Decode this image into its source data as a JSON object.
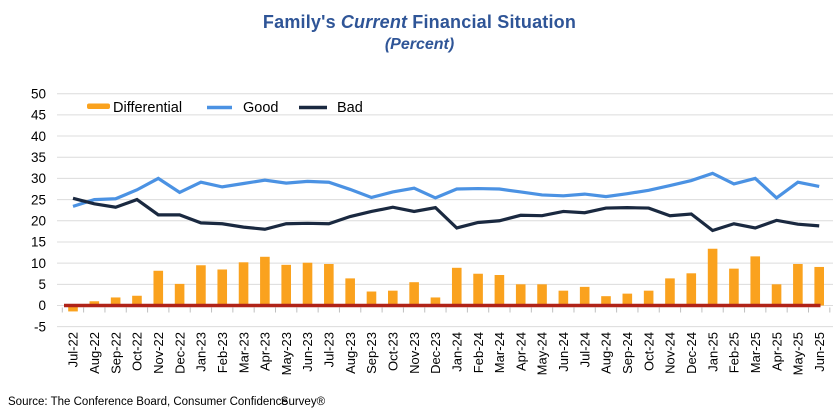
{
  "title": {
    "part1": "Family's",
    "part2": "Current",
    "part3": "Financial Situation",
    "subtitle": "(Percent)"
  },
  "footer": {
    "text": "Source: The Conference Board, Consumer Confidence",
    "overlap_text": "Survey®"
  },
  "colors": {
    "title_blue": "#2F5597",
    "differential_orange": "#FAA21E",
    "good_blue": "#4B92E3",
    "bad_navy": "#1A2940",
    "zero_line_red": "#B02318",
    "gridline_gray": "#DCDCDC",
    "tick_gray": "#BFBFBF",
    "text_black": "#000000"
  },
  "chart_data": {
    "type": "bar",
    "combo": "bar+line",
    "title": "Family's Current Financial Situation",
    "subtitle": "(Percent)",
    "xlabel": "",
    "ylabel": "",
    "ylim": [
      -5,
      50
    ],
    "yticks": [
      50,
      45,
      40,
      35,
      30,
      25,
      20,
      15,
      10,
      5,
      0,
      -5
    ],
    "grid": "horizontal",
    "legend_position": "top-left-inside",
    "zero_baseline": true,
    "categories": [
      "Jul-22",
      "Aug-22",
      "Sep-22",
      "Oct-22",
      "Nov-22",
      "Dec-22",
      "Jan-23",
      "Feb-23",
      "Mar-23",
      "Apr-23",
      "May-23",
      "Jun-23",
      "Jul-23",
      "Aug-23",
      "Sep-23",
      "Oct-23",
      "Nov-23",
      "Dec-23",
      "Jan-24",
      "Feb-24",
      "Mar-24",
      "Apr-24",
      "May-24",
      "Jun-24",
      "Jul-24",
      "Aug-24",
      "Sep-24",
      "Oct-24",
      "Nov-24",
      "Dec-24",
      "Jan-25",
      "Feb-25",
      "Mar-25",
      "Apr-25",
      "May-25",
      "Jun-25"
    ],
    "series": [
      {
        "name": "Differential",
        "render": "bar",
        "color": "#FAA21E",
        "values": [
          -1.4,
          1.0,
          1.9,
          2.3,
          8.2,
          5.1,
          9.5,
          8.5,
          10.2,
          11.5,
          9.6,
          10.1,
          9.8,
          6.4,
          3.3,
          3.5,
          5.5,
          1.9,
          8.9,
          7.5,
          7.2,
          5.0,
          5.0,
          3.5,
          4.4,
          2.2,
          2.8,
          3.5,
          6.4,
          7.6,
          13.4,
          8.7,
          11.6,
          5.0,
          9.8,
          9.1
        ]
      },
      {
        "name": "Good",
        "render": "line",
        "color": "#4B92E3",
        "values": [
          23.4,
          25.0,
          25.2,
          27.3,
          30.0,
          26.7,
          29.1,
          28.0,
          28.8,
          29.6,
          28.9,
          29.3,
          29.1,
          27.4,
          25.5,
          26.8,
          27.7,
          25.4,
          27.5,
          27.6,
          27.5,
          26.8,
          26.1,
          25.9,
          26.3,
          25.7,
          26.4,
          27.2,
          28.3,
          29.5,
          31.2,
          28.7,
          30.0,
          25.4,
          29.1,
          28.1
        ]
      },
      {
        "name": "Bad",
        "render": "line",
        "color": "#1A2940",
        "values": [
          25.3,
          24.0,
          23.2,
          25.0,
          21.4,
          21.4,
          19.5,
          19.3,
          18.5,
          18.0,
          19.3,
          19.4,
          19.3,
          21.0,
          22.2,
          23.2,
          22.2,
          23.1,
          18.3,
          19.6,
          20.0,
          21.3,
          21.2,
          22.2,
          21.9,
          23.0,
          23.1,
          23.0,
          21.2,
          21.6,
          17.7,
          19.3,
          18.3,
          20.1,
          19.2,
          18.8
        ]
      }
    ]
  }
}
